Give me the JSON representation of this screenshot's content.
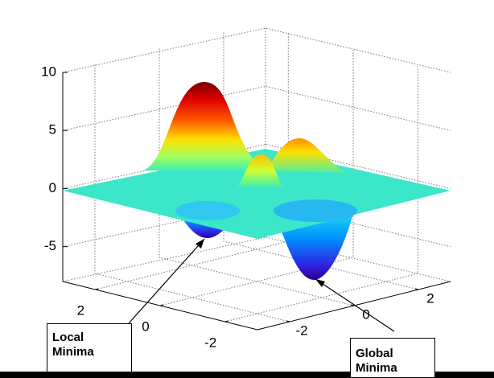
{
  "chart_data": {
    "type": "surface",
    "xlim": [
      -3,
      3
    ],
    "xticks": [
      -2,
      0,
      2
    ],
    "ylim": [
      -3,
      3
    ],
    "yticks": [
      -2,
      0,
      2
    ],
    "zlim": [
      -8,
      10
    ],
    "zticks": [
      -5,
      0,
      5,
      10
    ],
    "grid": true,
    "annotations": [
      "Local Minima",
      "Global Minima"
    ]
  }
}
